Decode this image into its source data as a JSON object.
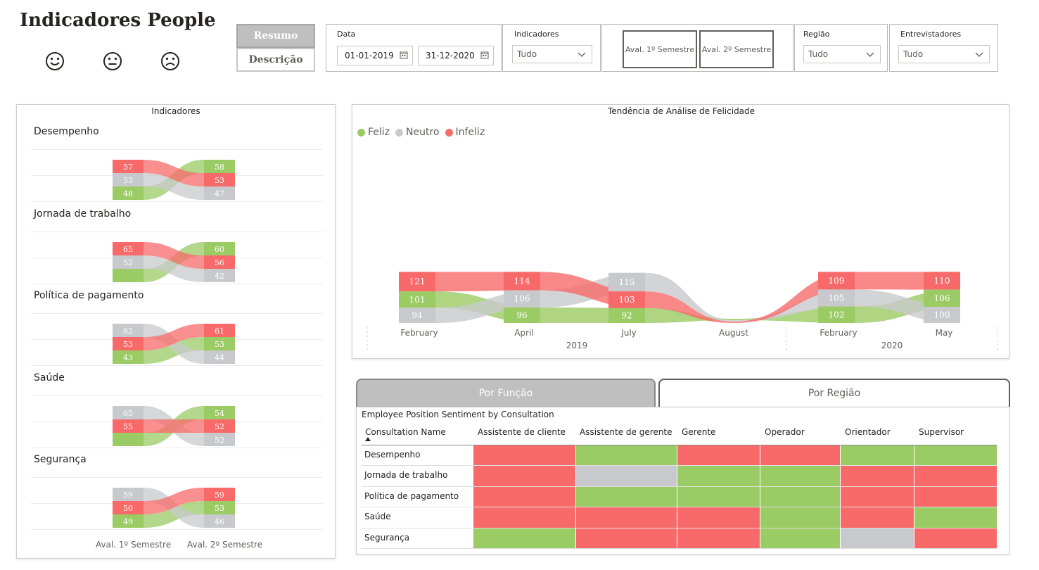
{
  "header": {
    "title": "Indicadores People"
  },
  "faces": [
    {
      "icon": "happy-face-icon",
      "color": "#8dc85a"
    },
    {
      "icon": "neutral-face-icon",
      "color": "#c8c9cc"
    },
    {
      "icon": "sad-face-icon",
      "color": "#f46060"
    }
  ],
  "nav": {
    "resumo": "Resumo",
    "descricao": "Descrição"
  },
  "filters": {
    "date": {
      "label": "Data",
      "start": "01-01-2019",
      "end": "31-12-2020"
    },
    "indicadores": {
      "label": "Indicadores",
      "value": "Tudo"
    },
    "sem1": "Aval. 1º Semestre",
    "sem2": "Aval. 2º Semestre",
    "regiao": {
      "label": "Região",
      "value": "Tudo"
    },
    "entrevistadores": {
      "label": "Entrevistadores",
      "value": "Tudo"
    }
  },
  "colors": {
    "feliz": "#9bcb64",
    "neutro": "#c8c9cc",
    "infeliz": "#f86a6a"
  },
  "indicators_card": {
    "title": "Indicadores",
    "footer_left": "Aval. 1º Semestre",
    "footer_right": "Aval. 2º Semestre",
    "items": [
      {
        "name": "Desempenho",
        "left": [
          {
            "s": "infeliz",
            "v": "57"
          },
          {
            "s": "neutro",
            "v": "53"
          },
          {
            "s": "feliz",
            "v": "48"
          }
        ],
        "right": [
          {
            "s": "feliz",
            "v": "58"
          },
          {
            "s": "infeliz",
            "v": "53"
          },
          {
            "s": "neutro",
            "v": "47"
          }
        ]
      },
      {
        "name": "Jornada de trabalho",
        "left": [
          {
            "s": "infeliz",
            "v": "65"
          },
          {
            "s": "neutro",
            "v": "52"
          },
          {
            "s": "feliz",
            "v": ""
          }
        ],
        "right": [
          {
            "s": "feliz",
            "v": "60"
          },
          {
            "s": "infeliz",
            "v": "56"
          },
          {
            "s": "neutro",
            "v": "42"
          }
        ]
      },
      {
        "name": "Política de pagamento",
        "left": [
          {
            "s": "neutro",
            "v": "62"
          },
          {
            "s": "infeliz",
            "v": "53"
          },
          {
            "s": "feliz",
            "v": "43"
          }
        ],
        "right": [
          {
            "s": "infeliz",
            "v": "61"
          },
          {
            "s": "feliz",
            "v": "53"
          },
          {
            "s": "neutro",
            "v": "44"
          }
        ]
      },
      {
        "name": "Saúde",
        "left": [
          {
            "s": "neutro",
            "v": "65"
          },
          {
            "s": "infeliz",
            "v": "55"
          },
          {
            "s": "feliz",
            "v": ""
          }
        ],
        "right": [
          {
            "s": "feliz",
            "v": "54"
          },
          {
            "s": "infeliz",
            "v": "52"
          },
          {
            "s": "neutro",
            "v": "52"
          }
        ]
      },
      {
        "name": "Segurança",
        "left": [
          {
            "s": "neutro",
            "v": "59"
          },
          {
            "s": "infeliz",
            "v": "50"
          },
          {
            "s": "feliz",
            "v": "49"
          }
        ],
        "right": [
          {
            "s": "infeliz",
            "v": "59"
          },
          {
            "s": "feliz",
            "v": "53"
          },
          {
            "s": "neutro",
            "v": "46"
          }
        ]
      }
    ]
  },
  "chart_data": {
    "type": "area",
    "title": "Tendência de Análise de Felicidade",
    "legend": [
      "Feliz",
      "Neutro",
      "Infeliz"
    ],
    "legend_position": "top-left",
    "categories": [
      "February",
      "April",
      "July",
      "August",
      "February",
      "May"
    ],
    "years": [
      "2019",
      "2020"
    ],
    "columns": [
      [
        {
          "s": "infeliz",
          "v": 121
        },
        {
          "s": "feliz",
          "v": 101
        },
        {
          "s": "neutro",
          "v": 94
        }
      ],
      [
        {
          "s": "infeliz",
          "v": 114
        },
        {
          "s": "neutro",
          "v": 106
        },
        {
          "s": "feliz",
          "v": 96
        }
      ],
      [
        {
          "s": "neutro",
          "v": 115
        },
        {
          "s": "infeliz",
          "v": 103
        },
        {
          "s": "feliz",
          "v": 92
        }
      ],
      [],
      [
        {
          "s": "infeliz",
          "v": 109
        },
        {
          "s": "neutro",
          "v": 105
        },
        {
          "s": "feliz",
          "v": 102
        }
      ],
      [
        {
          "s": "infeliz",
          "v": 110
        },
        {
          "s": "feliz",
          "v": 106
        },
        {
          "s": "neutro",
          "v": 100
        }
      ]
    ]
  },
  "tabs": {
    "funcao": "Por Função",
    "regiao": "Por Região"
  },
  "matrix": {
    "title": "Employee Position Sentiment by Consultation",
    "row_header": "Consultation Name",
    "columns": [
      "Assistente de cliente",
      "Assistente de gerente",
      "Gerente",
      "Operador",
      "Orientador",
      "Supervisor"
    ],
    "rows": [
      {
        "name": "Desempenho",
        "cells": [
          "infeliz",
          "feliz",
          "infeliz",
          "infeliz",
          "feliz",
          "feliz"
        ]
      },
      {
        "name": "Jornada de trabalho",
        "cells": [
          "infeliz",
          "neutro",
          "feliz",
          "feliz",
          "infeliz",
          "infeliz"
        ]
      },
      {
        "name": "Política de pagamento",
        "cells": [
          "infeliz",
          "feliz",
          "feliz",
          "feliz",
          "infeliz",
          "infeliz"
        ]
      },
      {
        "name": "Saúde",
        "cells": [
          "infeliz",
          "infeliz",
          "infeliz",
          "feliz",
          "infeliz",
          "feliz"
        ]
      },
      {
        "name": "Segurança",
        "cells": [
          "feliz",
          "infeliz",
          "infeliz",
          "feliz",
          "neutro",
          "infeliz"
        ]
      }
    ]
  }
}
